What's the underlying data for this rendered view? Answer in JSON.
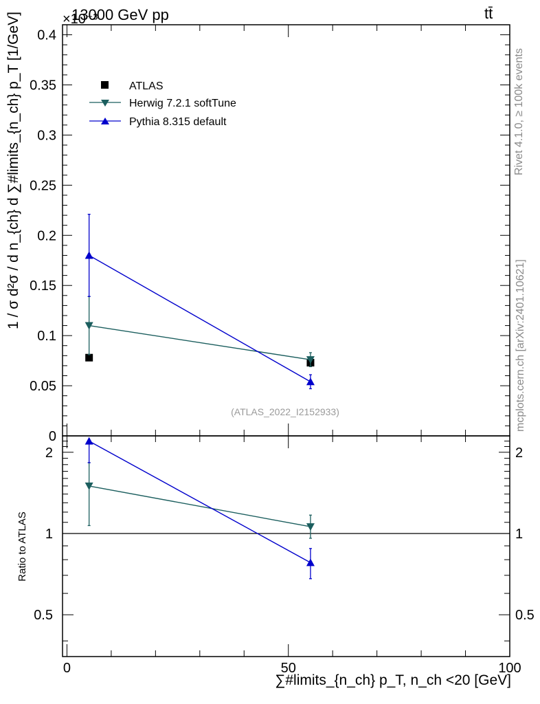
{
  "header": {
    "left_label": "13000 GeV pp",
    "right_label": "tt̄",
    "exponent_label": "×10⁻³"
  },
  "side_text": {
    "rivet": "Rivet 4.1.0, ≥ 100k events",
    "mcplots": "mcplots.cern.ch [arXiv:2401.10621]"
  },
  "colors": {
    "atlas": "#000000",
    "herwig": "#1b5e5e",
    "pythia": "#0000cc",
    "watermark": "#9a9a9a"
  },
  "chart_data": [
    {
      "type": "scatter",
      "panel": "main",
      "ylabel": "1 / σ d²σ / d n_{ch} d ∑#limits_{n_ch} p_T [1/GeV]",
      "ytick_labels": [
        "0",
        "0.05",
        "0.1",
        "0.15",
        "0.2",
        "0.25",
        "0.3",
        "0.35",
        "0.4"
      ],
      "ytick_values": [
        0,
        0.05,
        0.1,
        0.15,
        0.2,
        0.25,
        0.3,
        0.35,
        0.4
      ],
      "ylim": [
        0,
        0.41
      ],
      "xlim": [
        -1,
        100
      ],
      "annotation": "(ATLAS_2022_I2152933)",
      "legend": [
        "ATLAS",
        "Herwig 7.2.1 softTune",
        "Pythia 8.315 default"
      ],
      "series": [
        {
          "name": "ATLAS",
          "marker": "square",
          "x": [
            5,
            55
          ],
          "y": [
            0.078,
            0.073
          ],
          "yerr": [
            0.002,
            0.003
          ]
        },
        {
          "name": "Herwig 7.2.1 softTune",
          "marker": "triangle-down",
          "x": [
            5,
            55
          ],
          "y": [
            0.11,
            0.076
          ],
          "yerr": [
            0.029,
            0.007
          ]
        },
        {
          "name": "Pythia 8.315 default",
          "marker": "triangle-up",
          "x": [
            5,
            55
          ],
          "y": [
            0.18,
            0.054
          ],
          "yerr": [
            0.041,
            0.007
          ]
        }
      ]
    },
    {
      "type": "scatter",
      "panel": "ratio",
      "ylabel": "Ratio to ATLAS",
      "ytick_labels": [
        "0.5",
        "1",
        "2"
      ],
      "ytick_values": [
        0.5,
        1,
        2
      ],
      "ylim": [
        0.35,
        2.3
      ],
      "xlim": [
        -1,
        100
      ],
      "xlabel": "∑#limits_{n_ch} p_T, n_ch <20 [GeV]",
      "xtick_labels": [
        "0",
        "50",
        "100"
      ],
      "xtick_values": [
        0,
        50,
        100
      ],
      "reference_line": 1,
      "series": [
        {
          "name": "Herwig 7.2.1 softTune",
          "marker": "triangle-down",
          "x": [
            5,
            55
          ],
          "y": [
            1.5,
            1.06
          ],
          "ylow": [
            1.07,
            0.96
          ],
          "yhigh": [
            1.83,
            1.17
          ]
        },
        {
          "name": "Pythia 8.315 default",
          "marker": "triangle-up",
          "x": [
            5,
            55
          ],
          "y": [
            2.2,
            0.78
          ],
          "ylow": [
            1.83,
            0.68
          ],
          "yhigh": [
            2.2,
            0.88
          ]
        }
      ]
    }
  ]
}
